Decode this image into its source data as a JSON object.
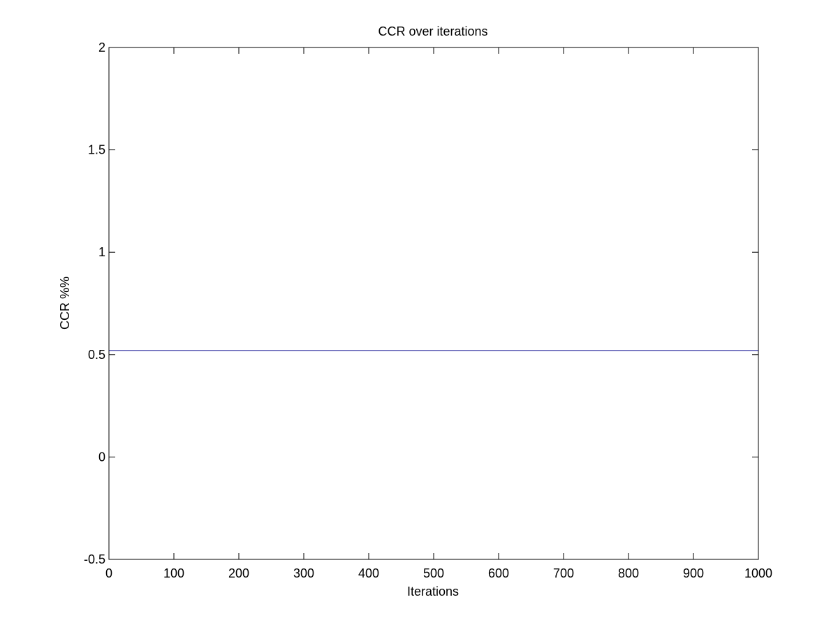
{
  "chart_data": {
    "type": "line",
    "title": "CCR over iterations",
    "xlabel": "Iterations",
    "ylabel": "CCR %%",
    "xlim": [
      0,
      1000
    ],
    "ylim": [
      -0.5,
      2
    ],
    "xticks": [
      0,
      100,
      200,
      300,
      400,
      500,
      600,
      700,
      800,
      900,
      1000
    ],
    "xtick_labels": [
      "0",
      "100",
      "200",
      "300",
      "400",
      "500",
      "600",
      "700",
      "800",
      "900",
      "1000"
    ],
    "yticks": [
      -0.5,
      0,
      0.5,
      1,
      1.5,
      2
    ],
    "ytick_labels": [
      "-0.5",
      "0",
      "0.5",
      "1",
      "1.5",
      "2"
    ],
    "grid": false,
    "legend": "none",
    "series": [
      {
        "color": "#00008b",
        "x": [
          0,
          1000
        ],
        "y": [
          0.52,
          0.52
        ]
      }
    ]
  }
}
